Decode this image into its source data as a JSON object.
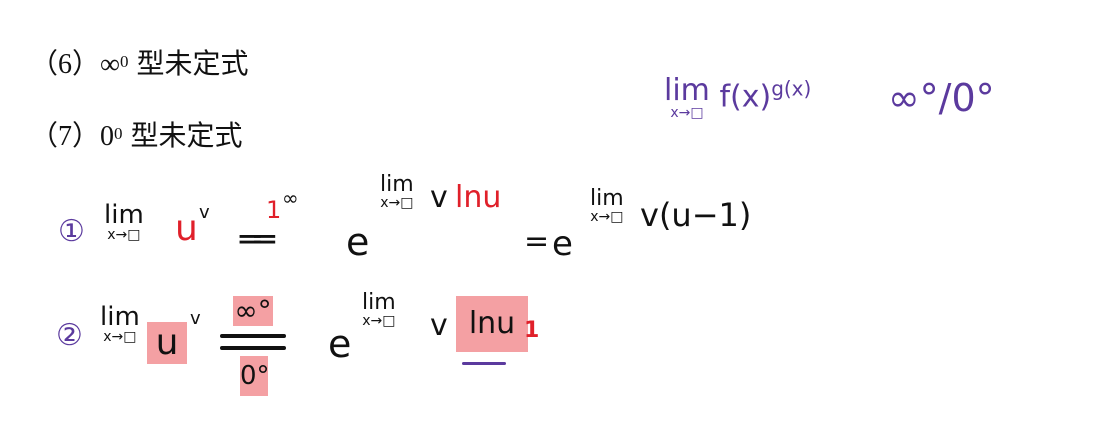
{
  "printed": {
    "line6": {
      "index": "（6）",
      "base": "∞",
      "exp": "0",
      "text": "型未定式"
    },
    "line7": {
      "index": "（7）",
      "base": "0",
      "exp": "0",
      "text": "型未定式"
    }
  },
  "handwriting": {
    "top_right": {
      "lim": "lim",
      "sub": "x→□",
      "func": "f(x)",
      "exp": "g(x)",
      "types": "∞°/0°"
    },
    "row1": {
      "marker": "①",
      "lim": "lim",
      "sub": "x→□",
      "base": "u",
      "exp": "v",
      "eq_over": "1",
      "eq_over_exp": "∞",
      "eq": "══",
      "e": "e",
      "exp_lim": "lim",
      "exp_sub": "x→□",
      "exp_v": "v",
      "exp_ln": "lnu",
      "eq2": "=",
      "e2": "e",
      "exp2_lim": "lim",
      "exp2_sub": "x→□",
      "exp2_body": "v(u−1)"
    },
    "row2": {
      "marker": "②",
      "lim": "lim",
      "sub": "x→□",
      "base": "u",
      "exp": "v",
      "frac_top": "∞°",
      "frac_bottom": "0°",
      "e": "e",
      "exp_lim": "lim",
      "exp_sub": "x→□",
      "exp_v": "v",
      "exp_ln": "lnu",
      "note_label": "1"
    }
  },
  "colors": {
    "purple": "#5b3a9e",
    "red": "#e0202a",
    "highlight": "#f4a0a3"
  }
}
